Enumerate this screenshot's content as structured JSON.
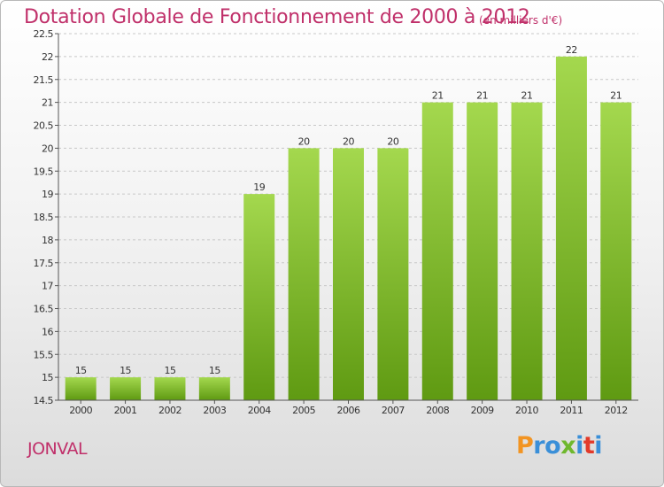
{
  "header": {
    "title": "Dotation Globale de Fonctionnement de 2000 à 2012",
    "unit": "(en milliers d'€)"
  },
  "footer": {
    "commune": "JONVAL",
    "logo": {
      "letters": [
        "P",
        "r",
        "o",
        "x",
        "i",
        "t",
        "i"
      ],
      "colors": [
        "#f29422",
        "#3a8fd8",
        "#3a8fd8",
        "#6fb82e",
        "#3a8fd8",
        "#e23a2a",
        "#3a8fd8"
      ]
    }
  },
  "colors": {
    "bar_top": "#a4d84e",
    "bar_bottom": "#5f9a12",
    "grid": "#c8c8c8",
    "title": "#c0306a"
  },
  "chart_data": {
    "type": "bar",
    "categories": [
      "2000",
      "2001",
      "2002",
      "2003",
      "2004",
      "2005",
      "2006",
      "2007",
      "2008",
      "2009",
      "2010",
      "2011",
      "2012"
    ],
    "values": [
      15,
      15,
      15,
      15,
      19,
      20,
      20,
      20,
      21,
      21,
      21,
      22,
      21
    ],
    "data_labels": [
      "15",
      "15",
      "15",
      "15",
      "19",
      "20",
      "20",
      "20",
      "21",
      "21",
      "21",
      "22",
      "21"
    ],
    "yticks": [
      "14.5",
      "15",
      "15.5",
      "16",
      "16.5",
      "17",
      "17.5",
      "18",
      "18.5",
      "19",
      "19.5",
      "20",
      "20.5",
      "21",
      "21.5",
      "22",
      "22.5"
    ],
    "ylim": [
      14.5,
      22.5
    ],
    "grid": true,
    "legend": "none",
    "title": "Dotation Globale de Fonctionnement de 2000 à 2012",
    "xlabel": "",
    "ylabel": ""
  }
}
